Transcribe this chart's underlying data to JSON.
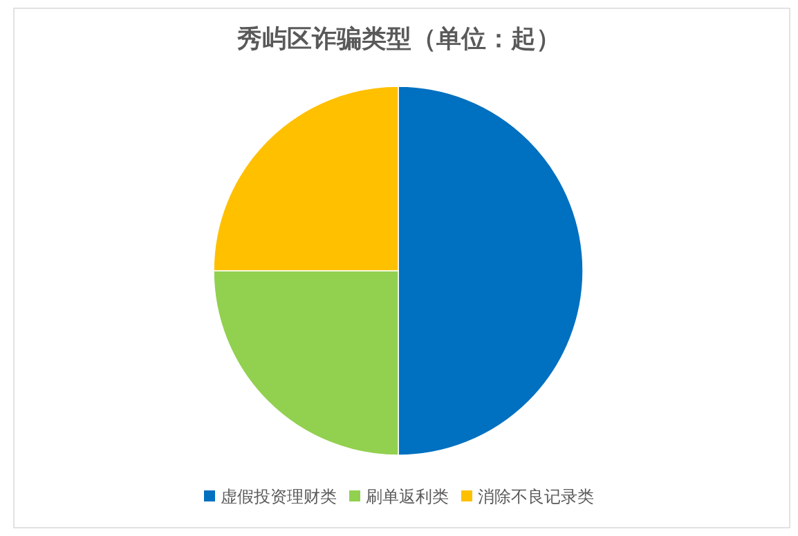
{
  "chart_data": {
    "type": "pie",
    "title": "秀屿区诈骗类型（单位：起）",
    "categories": [
      "虚假投资理财类",
      "刷单返利类",
      "消除不良记录类"
    ],
    "values": [
      50,
      25,
      25
    ],
    "colors": [
      "#0070c0",
      "#92d050",
      "#ffc000"
    ],
    "legend": "bottom"
  }
}
